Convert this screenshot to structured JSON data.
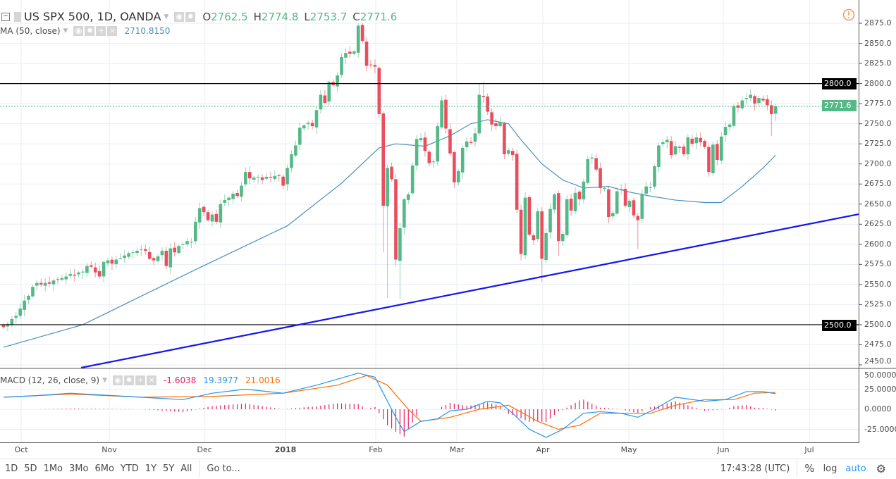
{
  "header": {
    "symbol": "US SPX 500, 1D, OANDA",
    "ohlc": {
      "o_label": "O",
      "o": "2762.5",
      "h_label": "H",
      "h": "2774.8",
      "l_label": "L",
      "l": "2753.7",
      "c_label": "C",
      "c": "2771.6"
    },
    "ma_label": "MA (50, close)",
    "ma_value": "2710.8150"
  },
  "macd_legend": {
    "label": "MACD (12, 26, close, 9)",
    "hist": "-1.6038",
    "macd": "19.3977",
    "signal": "21.0016"
  },
  "colors": {
    "up": "#53b987",
    "down": "#eb4d5c",
    "ma": "#4a8fbd",
    "trend": "#1414f0",
    "macd": "#2196f3",
    "signal": "#ff6d00",
    "hist": "#e91e63",
    "grid": "#e8eef5"
  },
  "price_axis": [
    "2875.0",
    "2850.0",
    "2825.0",
    "2800.0",
    "2775.0",
    "2750.0",
    "2725.0",
    "2700.0",
    "2675.0",
    "2650.0",
    "2625.0",
    "2600.0",
    "2575.0",
    "2550.0",
    "2525.0",
    "2500.0",
    "2475.0",
    "2450.0"
  ],
  "price_badges": {
    "resistance": "2800.0",
    "last": "2771.6",
    "support": "2500.0"
  },
  "macd_axis": [
    "50.0000",
    "25.0000",
    "0.0000",
    "-25.0000"
  ],
  "time_axis": [
    "Oct",
    "Nov",
    "Dec",
    "2018",
    "Feb",
    "Mar",
    "Apr",
    "May",
    "Jun",
    "Jul"
  ],
  "toolbar": {
    "ranges": [
      "1D",
      "5D",
      "1Mo",
      "3Mo",
      "6Mo",
      "YTD",
      "1Y",
      "5Y",
      "All"
    ],
    "goto": "Go to...",
    "clock": "17:43:28 (UTC)",
    "percent": "%",
    "log": "log",
    "auto": "auto"
  },
  "icons": {
    "alert": "alert-circle-icon",
    "settings": "gear-icon",
    "collapse": "collapse-icon"
  },
  "chart_data": {
    "type": "candlestick",
    "price_range": [
      2440,
      2885
    ],
    "closes": [
      2497,
      2501,
      2507,
      2511,
      2520,
      2530,
      2536,
      2547,
      2552,
      2550,
      2552,
      2551,
      2555,
      2556,
      2558,
      2560,
      2563,
      2561,
      2565,
      2566,
      2573,
      2572,
      2565,
      2560,
      2578,
      2580,
      2576,
      2581,
      2583,
      2586,
      2589,
      2590,
      2592,
      2594,
      2592,
      2582,
      2580,
      2585,
      2592,
      2573,
      2595,
      2590,
      2598,
      2600,
      2604,
      2603,
      2628,
      2645,
      2640,
      2630,
      2637,
      2628,
      2650,
      2655,
      2658,
      2663,
      2660,
      2673,
      2690,
      2682,
      2683,
      2684,
      2680,
      2684,
      2683,
      2685,
      2685,
      2673,
      2695,
      2712,
      2723,
      2745,
      2748,
      2751,
      2747,
      2767,
      2786,
      2776,
      2802,
      2798,
      2810,
      2833,
      2838,
      2837,
      2840,
      2872,
      2853,
      2822,
      2823,
      2821,
      2762,
      2648,
      2695,
      2681,
      2581,
      2620,
      2656,
      2662,
      2698,
      2731,
      2732,
      2716,
      2701,
      2703,
      2747,
      2779,
      2744,
      2713,
      2677,
      2691,
      2720,
      2728,
      2726,
      2738,
      2786,
      2783,
      2765,
      2749,
      2747,
      2752,
      2712,
      2717,
      2711,
      2643,
      2588,
      2658,
      2612,
      2605,
      2641,
      2582,
      2614,
      2644,
      2662,
      2604,
      2613,
      2656,
      2642,
      2664,
      2656,
      2678,
      2706,
      2708,
      2693,
      2670,
      2670,
      2634,
      2639,
      2666,
      2669,
      2648,
      2654,
      2636,
      2630,
      2663,
      2672,
      2671,
      2697,
      2723,
      2727,
      2730,
      2711,
      2722,
      2720,
      2712,
      2733,
      2725,
      2733,
      2727,
      2721,
      2690,
      2724,
      2705,
      2734,
      2746,
      2749,
      2772,
      2770,
      2779,
      2782,
      2786,
      2775,
      2782,
      2779,
      2773,
      2762,
      2771.6
    ],
    "extremes": [
      {
        "i": 86,
        "high": 2875
      },
      {
        "i": 91,
        "low": 2590
      },
      {
        "i": 92,
        "low": 2533
      },
      {
        "i": 95,
        "low": 2532
      },
      {
        "i": 115,
        "high": 2802
      },
      {
        "i": 114,
        "high": 2800
      },
      {
        "i": 129,
        "low": 2553
      },
      {
        "i": 133,
        "low": 2586
      },
      {
        "i": 152,
        "low": 2594
      },
      {
        "i": 184,
        "low": 2735
      },
      {
        "i": 185,
        "open": 2762.5,
        "high": 2774.8,
        "low": 2753.7
      }
    ],
    "ma50": [
      [
        0,
        2472
      ],
      [
        19,
        2500
      ],
      [
        47,
        2571
      ],
      [
        68,
        2623
      ],
      [
        81,
        2676
      ],
      [
        90,
        2720
      ],
      [
        94,
        2725
      ],
      [
        101,
        2722
      ],
      [
        107,
        2735
      ],
      [
        112,
        2750
      ],
      [
        116,
        2755
      ],
      [
        121,
        2750
      ],
      [
        124,
        2730
      ],
      [
        129,
        2700
      ],
      [
        134,
        2680
      ],
      [
        139,
        2670
      ],
      [
        145,
        2672
      ],
      [
        150,
        2665
      ],
      [
        155,
        2660
      ],
      [
        161,
        2655
      ],
      [
        168,
        2652
      ],
      [
        172,
        2652
      ],
      [
        177,
        2672
      ],
      [
        182,
        2695
      ],
      [
        185,
        2710.8
      ]
    ],
    "horizontal_levels": [
      2800,
      2500
    ],
    "trendline": [
      [
        18.6,
        2446.5
      ],
      [
        204.9,
        2637.5
      ]
    ],
    "macd": [
      [
        0,
        15
      ],
      [
        8,
        17
      ],
      [
        16,
        20
      ],
      [
        33,
        15
      ],
      [
        43,
        12
      ],
      [
        50,
        20
      ],
      [
        58,
        25
      ],
      [
        67,
        20
      ],
      [
        75,
        30
      ],
      [
        85,
        45
      ],
      [
        89,
        40
      ],
      [
        91,
        20
      ],
      [
        94,
        -10
      ],
      [
        96,
        -28
      ],
      [
        100,
        -15
      ],
      [
        104,
        -12
      ],
      [
        107,
        -2
      ],
      [
        111,
        0
      ],
      [
        116,
        10
      ],
      [
        119,
        8
      ],
      [
        122,
        -5
      ],
      [
        126,
        -25
      ],
      [
        130,
        -35
      ],
      [
        134,
        -25
      ],
      [
        139,
        -5
      ],
      [
        143,
        -3
      ],
      [
        148,
        -5
      ],
      [
        152,
        -10
      ],
      [
        156,
        0
      ],
      [
        161,
        15
      ],
      [
        168,
        10
      ],
      [
        173,
        12
      ],
      [
        178,
        22
      ],
      [
        182,
        22
      ],
      [
        185,
        19.4
      ]
    ],
    "signal": [
      [
        0,
        15
      ],
      [
        16,
        19
      ],
      [
        33,
        15
      ],
      [
        50,
        16
      ],
      [
        67,
        20
      ],
      [
        80,
        30
      ],
      [
        87,
        42
      ],
      [
        92,
        30
      ],
      [
        97,
        0
      ],
      [
        100,
        -15
      ],
      [
        107,
        -10
      ],
      [
        114,
        0
      ],
      [
        121,
        5
      ],
      [
        128,
        -15
      ],
      [
        133,
        -25
      ],
      [
        138,
        -20
      ],
      [
        143,
        -5
      ],
      [
        148,
        -5
      ],
      [
        155,
        -5
      ],
      [
        161,
        5
      ],
      [
        168,
        12
      ],
      [
        175,
        12
      ],
      [
        180,
        20
      ],
      [
        185,
        21.0
      ]
    ],
    "macd_range": [
      -40,
      55
    ]
  }
}
